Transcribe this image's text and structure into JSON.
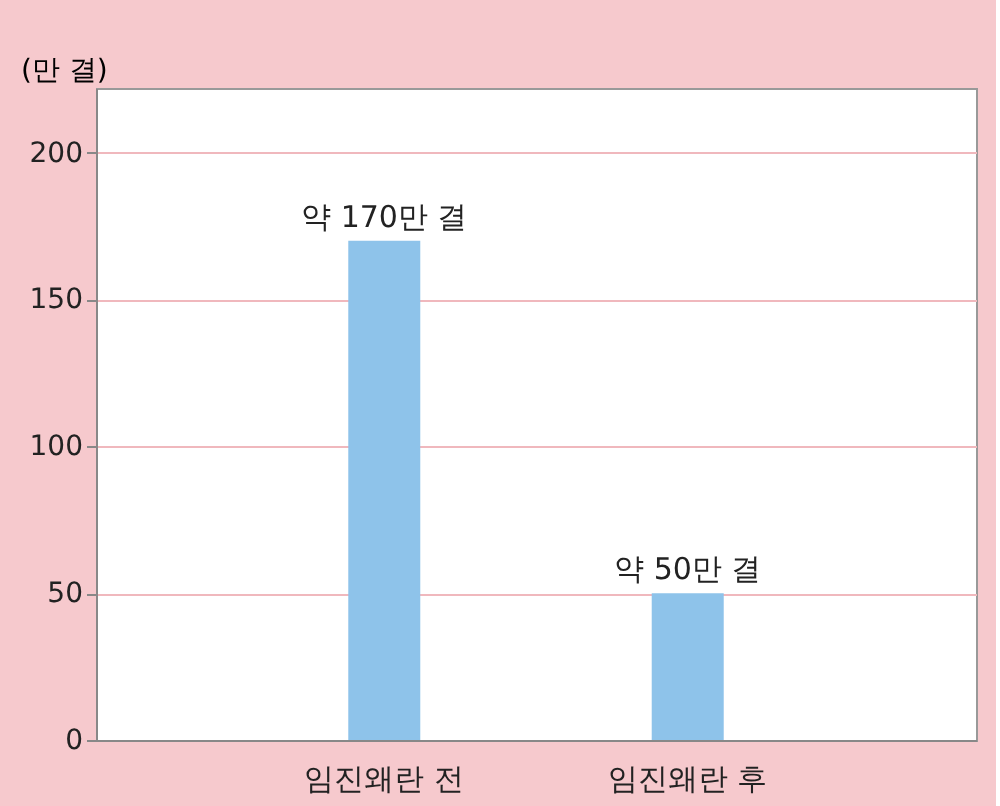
{
  "chart_data": {
    "type": "bar",
    "ylabel": "(만 결)",
    "categories": [
      "임진왜란 전",
      "임진왜란 후"
    ],
    "values": [
      170,
      50
    ],
    "value_labels": [
      "약 170만 결",
      "약 50만 결"
    ],
    "color": "#8ec3ea",
    "ylim": [
      0,
      222
    ],
    "yticks": [
      0,
      50,
      100,
      150,
      200
    ],
    "grid": "y"
  }
}
